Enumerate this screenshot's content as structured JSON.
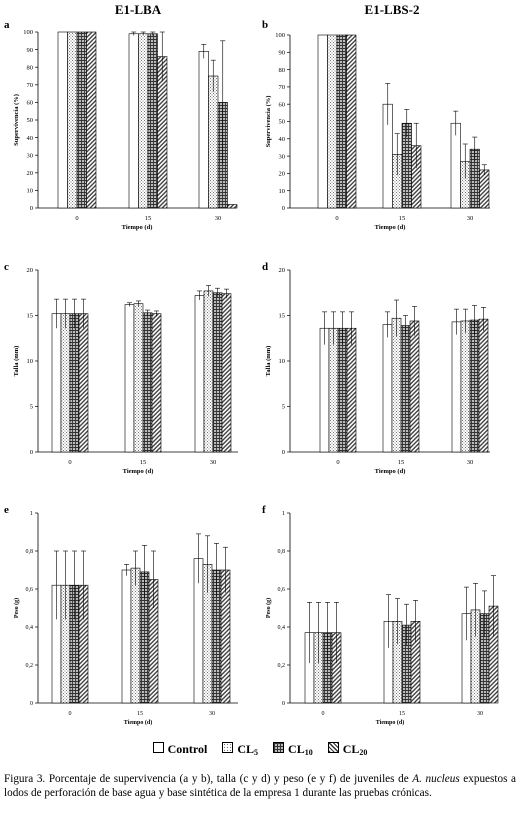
{
  "column_titles": [
    "E1-LBA",
    "E1-LBS-2"
  ],
  "legend": {
    "entries": [
      {
        "name": "Control",
        "sub": "",
        "pattern": "blank"
      },
      {
        "name": "CL",
        "sub": "5",
        "pattern": "dots"
      },
      {
        "name": "CL",
        "sub": "10",
        "pattern": "grid"
      },
      {
        "name": "CL",
        "sub": "20",
        "pattern": "hatch"
      }
    ]
  },
  "caption": {
    "before_italic": "Figura 3. Porcentaje de supervivencia (a y b), talla (c y d) y peso (e y f) de juveniles de ",
    "italic": "A. nucleus",
    "after_italic": " expuestos a lodos de perforación de base agua y base sintética de la empresa 1 durante las pruebas crónicas."
  },
  "chart_data": [
    {
      "panel": "a",
      "type": "bar",
      "categories": [
        "0",
        "15",
        "30"
      ],
      "xlabel": "Tiempo (d)",
      "ylabel": "Supervivencia (%)",
      "ylim": [
        0,
        100
      ],
      "yticks": [
        0,
        10,
        20,
        30,
        40,
        50,
        60,
        70,
        80,
        90,
        100
      ],
      "series": [
        {
          "name": "Control",
          "values": [
            100,
            99,
            89
          ],
          "errors": [
            0,
            1,
            4
          ]
        },
        {
          "name": "CL5",
          "values": [
            100,
            99,
            75
          ],
          "errors": [
            0,
            1,
            9
          ]
        },
        {
          "name": "CL10",
          "values": [
            100,
            99,
            60
          ],
          "errors": [
            0,
            1,
            35
          ]
        },
        {
          "name": "CL20",
          "values": [
            100,
            86,
            2
          ],
          "errors": [
            0,
            14,
            0
          ]
        }
      ]
    },
    {
      "panel": "b",
      "type": "bar",
      "categories": [
        "0",
        "15",
        "30"
      ],
      "xlabel": "Tiempo (d)",
      "ylabel": "Supervivencia (%)",
      "ylim": [
        0,
        100
      ],
      "yticks": [
        0,
        10,
        20,
        30,
        40,
        50,
        60,
        70,
        80,
        90,
        100
      ],
      "series": [
        {
          "name": "Control",
          "values": [
            100,
            60,
            49
          ],
          "errors": [
            0,
            12,
            7
          ]
        },
        {
          "name": "CL5",
          "values": [
            100,
            31,
            27
          ],
          "errors": [
            0,
            12,
            10
          ]
        },
        {
          "name": "CL10",
          "values": [
            100,
            49,
            34
          ],
          "errors": [
            0,
            8,
            7
          ]
        },
        {
          "name": "CL20",
          "values": [
            100,
            36,
            22
          ],
          "errors": [
            0,
            13,
            3
          ]
        }
      ]
    },
    {
      "panel": "c",
      "type": "bar",
      "categories": [
        "0",
        "15",
        "30"
      ],
      "xlabel": "Tiempo (d)",
      "ylabel": "Talla (mm)",
      "ylim": [
        0,
        20
      ],
      "yticks": [
        0,
        5,
        10,
        15,
        20
      ],
      "series": [
        {
          "name": "Control",
          "values": [
            15.2,
            16.2,
            17.2
          ],
          "errors": [
            1.6,
            0.2,
            0.5
          ]
        },
        {
          "name": "CL5",
          "values": [
            15.2,
            16.3,
            17.7
          ],
          "errors": [
            1.6,
            0.3,
            0.6
          ]
        },
        {
          "name": "CL10",
          "values": [
            15.2,
            15.3,
            17.5
          ],
          "errors": [
            1.6,
            0.3,
            0.5
          ]
        },
        {
          "name": "CL20",
          "values": [
            15.2,
            15.2,
            17.4
          ],
          "errors": [
            1.6,
            0.3,
            0.5
          ]
        }
      ]
    },
    {
      "panel": "d",
      "type": "bar",
      "categories": [
        "0",
        "15",
        "30"
      ],
      "xlabel": "Tiempo (d)",
      "ylabel": "Talla (mm)",
      "ylim": [
        0,
        20
      ],
      "yticks": [
        0,
        5,
        10,
        15,
        20
      ],
      "series": [
        {
          "name": "Control",
          "values": [
            13.6,
            14.0,
            14.3
          ],
          "errors": [
            1.8,
            1.4,
            1.4
          ]
        },
        {
          "name": "CL5",
          "values": [
            13.6,
            14.7,
            14.4
          ],
          "errors": [
            1.8,
            2.0,
            1.3
          ]
        },
        {
          "name": "CL10",
          "values": [
            13.6,
            13.9,
            14.5
          ],
          "errors": [
            1.8,
            1.1,
            1.6
          ]
        },
        {
          "name": "CL20",
          "values": [
            13.6,
            14.4,
            14.6
          ],
          "errors": [
            1.8,
            1.6,
            1.3
          ]
        }
      ]
    },
    {
      "panel": "e",
      "type": "bar",
      "categories": [
        "0",
        "15",
        "30"
      ],
      "xlabel": "Tiempo (d)",
      "ylabel": "Peso (g)",
      "ylim": [
        0,
        1
      ],
      "yticks": [
        0,
        0.2,
        0.4,
        0.6,
        0.8,
        1
      ],
      "ytick_labels": [
        "0",
        "0,2",
        "0,4",
        "0,6",
        "0,8",
        "1"
      ],
      "series": [
        {
          "name": "Control",
          "values": [
            0.62,
            0.7,
            0.76
          ],
          "errors": [
            0.18,
            0.03,
            0.13
          ]
        },
        {
          "name": "CL5",
          "values": [
            0.62,
            0.71,
            0.73
          ],
          "errors": [
            0.18,
            0.09,
            0.15
          ]
        },
        {
          "name": "CL10",
          "values": [
            0.62,
            0.69,
            0.7
          ],
          "errors": [
            0.18,
            0.14,
            0.14
          ]
        },
        {
          "name": "CL20",
          "values": [
            0.62,
            0.65,
            0.7
          ],
          "errors": [
            0.18,
            0.15,
            0.12
          ]
        }
      ]
    },
    {
      "panel": "f",
      "type": "bar",
      "categories": [
        "0",
        "15",
        "30"
      ],
      "xlabel": "Tiempo (d)",
      "ylabel": "Peso (g)",
      "ylim": [
        0,
        1
      ],
      "yticks": [
        0,
        0.2,
        0.4,
        0.6,
        0.8,
        1
      ],
      "ytick_labels": [
        "0",
        "0,2",
        "0,4",
        "0,6",
        "0,8",
        "1"
      ],
      "series": [
        {
          "name": "Control",
          "values": [
            0.37,
            0.43,
            0.47
          ],
          "errors": [
            0.16,
            0.14,
            0.14
          ]
        },
        {
          "name": "CL5",
          "values": [
            0.37,
            0.43,
            0.49
          ],
          "errors": [
            0.16,
            0.12,
            0.14
          ]
        },
        {
          "name": "CL10",
          "values": [
            0.37,
            0.41,
            0.47
          ],
          "errors": [
            0.16,
            0.11,
            0.12
          ]
        },
        {
          "name": "CL20",
          "values": [
            0.37,
            0.43,
            0.51
          ],
          "errors": [
            0.16,
            0.11,
            0.16
          ]
        }
      ]
    }
  ]
}
